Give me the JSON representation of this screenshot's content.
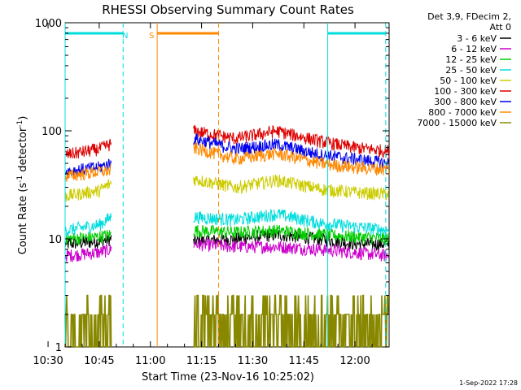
{
  "chart_data": {
    "type": "line",
    "title": "RHESSI Observing Summary Count Rates",
    "xlabel": "Start Time (23-Nov-16 10:25:02)",
    "ylabel": "Count Rate (s⁻¹ detector⁻¹)",
    "ylabel_main": "Count Rate (s",
    "ylabel_sup1": "-1",
    "ylabel_mid": " detector",
    "ylabel_sup2": "-1",
    "ylabel_end": ")",
    "yscale": "log",
    "ylim": [
      1,
      1000
    ],
    "xlim_minutes": [
      10.0,
      105.0
    ],
    "x_ticks": [
      "10:30",
      "10:45",
      "11:00",
      "11:15",
      "11:30",
      "11:45",
      "12:00"
    ],
    "y_ticks": [
      "1",
      "10",
      "100",
      "1000"
    ],
    "legend_header": [
      "Det 3,9, FDecim 2,",
      "Att 0"
    ],
    "legend_placement": "right",
    "timestamp": "1-Sep-2022 17:28",
    "data_gaps_minutes": [
      [
        23.5,
        47.5
      ]
    ],
    "series": [
      {
        "name": "3 - 6 keV",
        "color": "#000000",
        "x": [
          10,
          20,
          23.5,
          47.5,
          60,
          72,
          85,
          95,
          105
        ],
        "values": [
          9,
          9.5,
          10,
          9.5,
          10,
          11,
          10,
          9,
          9
        ]
      },
      {
        "name": "6 - 12 keV",
        "color": "#cc00cc",
        "x": [
          10,
          20,
          23.5,
          47.5,
          60,
          72,
          85,
          95,
          105
        ],
        "values": [
          7,
          7.5,
          8,
          9,
          8.5,
          8.5,
          8,
          7.5,
          7
        ]
      },
      {
        "name": "12 - 25 keV",
        "color": "#00cc00",
        "x": [
          10,
          20,
          23.5,
          47.5,
          60,
          72,
          85,
          95,
          105
        ],
        "values": [
          10,
          10.5,
          11,
          12,
          11.5,
          12,
          11,
          10.5,
          10
        ]
      },
      {
        "name": "25 - 50 keV",
        "color": "#00dddd",
        "x": [
          10,
          20,
          23.5,
          47.5,
          60,
          72,
          85,
          95,
          105
        ],
        "values": [
          12,
          13.5,
          16,
          16,
          15,
          17,
          14,
          13,
          12
        ]
      },
      {
        "name": "50 - 100 keV",
        "color": "#cccc00",
        "x": [
          10,
          20,
          23.5,
          47.5,
          60,
          72,
          85,
          95,
          105
        ],
        "values": [
          25,
          28,
          33,
          36,
          30,
          35,
          29,
          27,
          26
        ]
      },
      {
        "name": "100 - 300 keV",
        "color": "#dd0000",
        "x": [
          10,
          20,
          23.5,
          47.5,
          60,
          72,
          85,
          95,
          105
        ],
        "values": [
          60,
          68,
          76,
          100,
          85,
          100,
          80,
          70,
          65
        ]
      },
      {
        "name": "300 - 800 keV",
        "color": "#0000ee",
        "x": [
          10,
          20,
          23.5,
          47.5,
          60,
          72,
          85,
          95,
          105
        ],
        "values": [
          42,
          46,
          50,
          85,
          68,
          75,
          60,
          55,
          50
        ]
      },
      {
        "name": "800 - 7000 keV",
        "color": "#ff8800",
        "x": [
          10,
          20,
          23.5,
          47.5,
          60,
          72,
          85,
          95,
          105
        ],
        "values": [
          38,
          42,
          43,
          70,
          55,
          62,
          50,
          46,
          44
        ]
      },
      {
        "name": "7000 - 15000 keV",
        "color": "#888800",
        "x": [
          10,
          20,
          23.5,
          47.5,
          60,
          72,
          85,
          95,
          105
        ],
        "values": [
          2,
          2,
          2.5,
          2.5,
          2,
          2.5,
          2,
          2,
          2
        ]
      }
    ],
    "markers": [
      {
        "label": "N",
        "color": "#00dddd",
        "bars": [
          [
            10,
            27
          ],
          [
            87,
            104
          ]
        ],
        "dashed_x": [
          27,
          104
        ],
        "solid_x": [
          10,
          87
        ]
      },
      {
        "label": "S",
        "color": "#ff8800",
        "bars": [
          [
            37,
            55
          ]
        ],
        "dashed_x": [
          55
        ],
        "solid_x": [
          37
        ]
      }
    ]
  }
}
